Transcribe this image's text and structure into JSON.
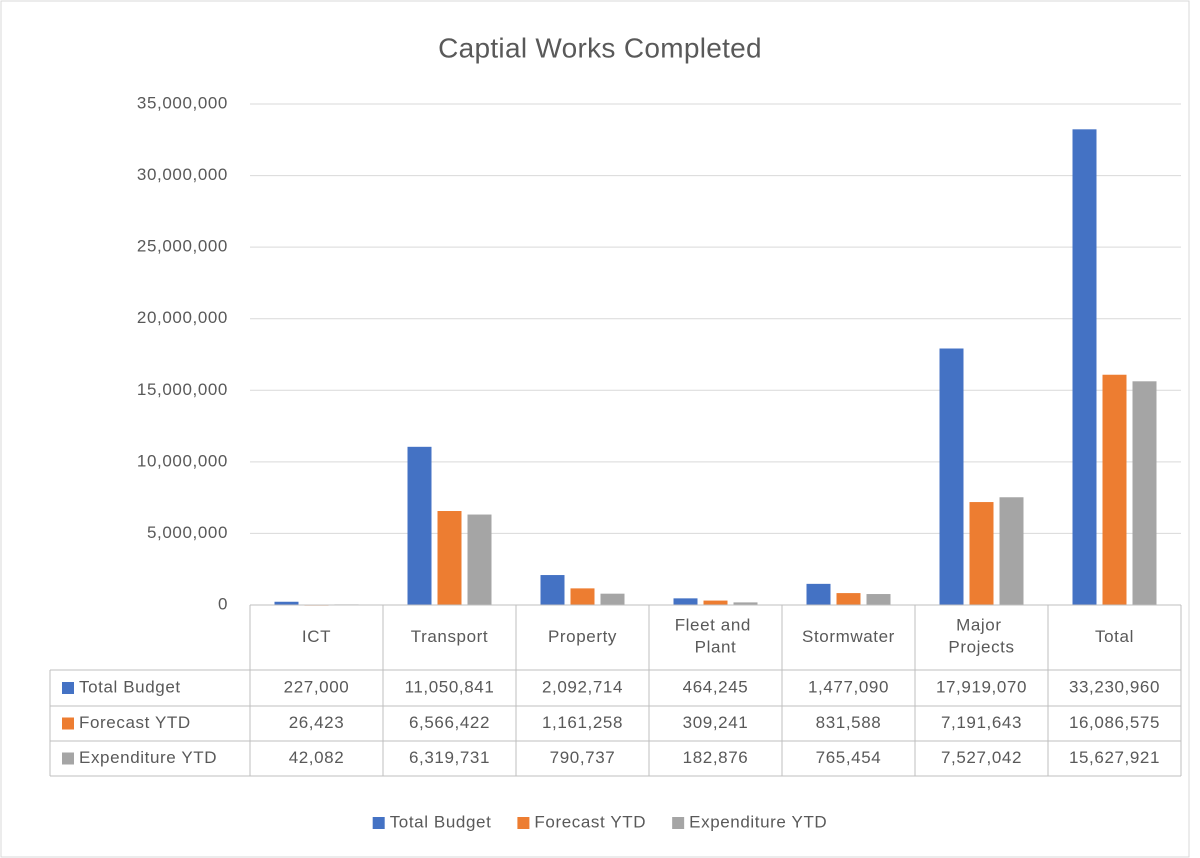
{
  "chart_data": {
    "type": "bar",
    "title": "Captial Works Completed",
    "categories": [
      "ICT",
      "Transport",
      "Property",
      "Fleet and Plant",
      "Stormwater",
      "Major Projects",
      "Total"
    ],
    "series": [
      {
        "name": "Total Budget",
        "color": "#4472c4",
        "values": [
          227000,
          11050841,
          2092714,
          464245,
          1477090,
          17919070,
          33230960
        ],
        "value_labels": [
          "227,000",
          "11,050,841",
          "2,092,714",
          "464,245",
          "1,477,090",
          "17,919,070",
          "33,230,960"
        ]
      },
      {
        "name": "Forecast YTD",
        "color": "#ed7d31",
        "values": [
          26423,
          6566422,
          1161258,
          309241,
          831588,
          7191643,
          16086575
        ],
        "value_labels": [
          "26,423",
          "6,566,422",
          "1,161,258",
          "309,241",
          "831,588",
          "7,191,643",
          "16,086,575"
        ]
      },
      {
        "name": "Expenditure YTD",
        "color": "#a5a5a5",
        "values": [
          42082,
          6319731,
          790737,
          182876,
          765454,
          7527042,
          15627921
        ],
        "value_labels": [
          "42,082",
          "6,319,731",
          "790,737",
          "182,876",
          "765,454",
          "7,527,042",
          "15,627,921"
        ]
      }
    ],
    "ylim": [
      0,
      35000000
    ],
    "yticks": [
      0,
      {
        "value": 5000000,
        "label": "5,000,000"
      },
      {
        "value": 10000000,
        "label": "10,000,000"
      },
      {
        "value": 15000000,
        "label": "15,000,000"
      },
      {
        "value": 20000000,
        "label": "20,000,000"
      },
      {
        "value": 25000000,
        "label": "25,000,000"
      },
      {
        "value": 30000000,
        "label": "30,000,000"
      },
      {
        "value": 35000000,
        "label": "35,000,000"
      }
    ],
    "grid": true,
    "legend": "bottom"
  }
}
